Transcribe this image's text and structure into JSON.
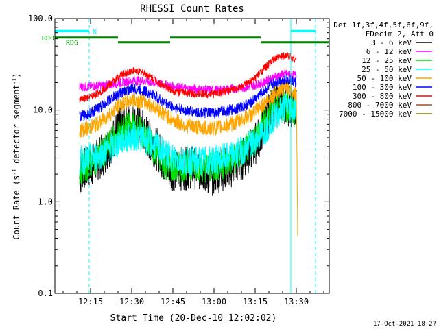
{
  "chart_data": {
    "type": "line",
    "title": "RHESSI Count Rates",
    "xlabel": "Start Time (20-Dec-10 12:02:02)",
    "ylabel_parts": [
      "Count Rate (s",
      "-1",
      " detector segment",
      "-1",
      ")"
    ],
    "x_unit": "minutes after 12:02:02",
    "x_range": [
      0,
      100
    ],
    "y_scale": "log",
    "ylim": [
      0.1,
      100.0
    ],
    "x_ticks": [
      {
        "t": 13,
        "label": "12:15"
      },
      {
        "t": 28,
        "label": "12:30"
      },
      {
        "t": 43,
        "label": "12:45"
      },
      {
        "t": 58,
        "label": "13:00"
      },
      {
        "t": 73,
        "label": "13:15"
      },
      {
        "t": 88,
        "label": "13:30"
      }
    ],
    "y_ticks": [
      {
        "v": 0.1,
        "label": "0.1"
      },
      {
        "v": 1.0,
        "label": "1.0"
      },
      {
        "v": 10.0,
        "label": "10.0"
      },
      {
        "v": 100.0,
        "label": "100.0"
      }
    ],
    "legend_header": [
      "Det 1f,3f,4f,5f,6f,9f,",
      "FDecim 2, Att 0"
    ],
    "legend_placement": "right, outside plot",
    "series": [
      {
        "name": "3 - 6 keV",
        "color": "#000000",
        "t": [
          9,
          10,
          12,
          14,
          16,
          18,
          20,
          22,
          24,
          26,
          28,
          30,
          32,
          34,
          36,
          38,
          40,
          42,
          44,
          46,
          48,
          50,
          52,
          54,
          56,
          58,
          60,
          62,
          64,
          66,
          68,
          70,
          72,
          74,
          76,
          78,
          80,
          82,
          84,
          86,
          88
        ],
        "v": [
          1.8,
          2.3,
          2.3,
          2.6,
          3.0,
          3.3,
          4.2,
          5.5,
          6.4,
          7.0,
          7.2,
          6.8,
          6.0,
          5.0,
          4.2,
          3.4,
          2.7,
          2.3,
          2.2,
          2.3,
          2.3,
          2.4,
          2.3,
          2.2,
          2.0,
          2.0,
          2.2,
          2.3,
          2.4,
          2.6,
          2.9,
          3.3,
          3.8,
          4.8,
          6.5,
          9.0,
          11.5,
          12.5,
          12.0,
          11.0,
          10.5
        ]
      },
      {
        "name": "6 - 12 keV",
        "color": "#ff00ff",
        "t": [
          9,
          12,
          16,
          20,
          24,
          28,
          32,
          36,
          40,
          44,
          48,
          52,
          56,
          60,
          64,
          68,
          72,
          76,
          80,
          84,
          86,
          88
        ],
        "v": [
          18,
          18,
          18.5,
          19,
          20,
          21,
          21,
          20,
          19,
          18,
          17,
          17,
          16.5,
          16.5,
          17,
          17.5,
          18.5,
          20,
          23,
          25,
          24,
          24
        ]
      },
      {
        "name": "12 - 25 keV",
        "color": "#00dd00",
        "t": [
          9,
          10,
          12,
          14,
          16,
          18,
          20,
          22,
          24,
          26,
          28,
          30,
          32,
          34,
          36,
          38,
          40,
          42,
          44,
          46,
          48,
          50,
          52,
          54,
          56,
          58,
          60,
          62,
          64,
          66,
          68,
          70,
          72,
          74,
          76,
          78,
          80,
          82,
          84,
          86,
          88
        ],
        "v": [
          2.2,
          2.4,
          2.5,
          2.8,
          3.1,
          3.5,
          4.2,
          5.0,
          5.8,
          6.3,
          6.5,
          6.2,
          5.5,
          4.6,
          3.8,
          3.1,
          2.6,
          2.4,
          2.3,
          2.4,
          2.5,
          2.5,
          2.5,
          2.4,
          2.4,
          2.4,
          2.5,
          2.6,
          2.8,
          3.0,
          3.3,
          3.8,
          4.5,
          5.5,
          7.0,
          9.0,
          11.0,
          11.5,
          11.0,
          10.0,
          9.5
        ]
      },
      {
        "name": "25 - 50 keV",
        "color": "#00ffff",
        "t": [
          9,
          12,
          16,
          20,
          24,
          28,
          32,
          36,
          40,
          44,
          48,
          52,
          56,
          60,
          64,
          68,
          72,
          76,
          80,
          84,
          86,
          88
        ],
        "v": [
          2.8,
          2.9,
          3.2,
          3.8,
          4.6,
          5.2,
          5.0,
          4.2,
          3.4,
          2.9,
          2.8,
          2.8,
          2.8,
          2.9,
          3.1,
          3.6,
          4.3,
          5.8,
          8.5,
          11.0,
          11.0,
          10.5
        ]
      },
      {
        "name": "50 - 100 keV",
        "color": "#ffa500",
        "t": [
          9,
          12,
          16,
          20,
          24,
          28,
          32,
          36,
          40,
          44,
          48,
          52,
          56,
          60,
          64,
          68,
          72,
          76,
          80,
          84,
          86,
          88,
          88.5
        ],
        "v": [
          6.0,
          6.3,
          7.2,
          9.0,
          11.5,
          13.0,
          12.5,
          11.0,
          9.0,
          7.5,
          6.8,
          6.5,
          6.3,
          6.5,
          7.0,
          7.8,
          9.0,
          11.5,
          15.0,
          18.0,
          17.0,
          15.0,
          0.5
        ]
      },
      {
        "name": "100 - 300 keV",
        "color": "#0000ff",
        "t": [
          9,
          12,
          16,
          20,
          24,
          28,
          32,
          36,
          40,
          44,
          48,
          52,
          56,
          60,
          64,
          68,
          72,
          76,
          80,
          84,
          86,
          88
        ],
        "v": [
          8.5,
          9.0,
          10.5,
          13.0,
          15.5,
          17.0,
          16.5,
          14.5,
          12.0,
          10.5,
          9.8,
          9.5,
          9.3,
          9.5,
          10.0,
          10.8,
          12.5,
          16.0,
          20.0,
          22.0,
          21.0,
          20.0
        ]
      },
      {
        "name": "300 - 800 keV",
        "color": "#ff0000",
        "t": [
          9,
          12,
          16,
          20,
          24,
          28,
          32,
          36,
          40,
          44,
          48,
          52,
          56,
          60,
          64,
          68,
          72,
          76,
          80,
          84,
          86,
          88
        ],
        "v": [
          13.0,
          13.5,
          15.5,
          19.0,
          24.0,
          27.0,
          26.0,
          22.0,
          18.0,
          16.0,
          15.5,
          15.0,
          15.0,
          15.5,
          16.5,
          18.0,
          21.0,
          28.0,
          36.0,
          40.0,
          38.0,
          36.0
        ]
      },
      {
        "name": "800 - 7000 keV",
        "color": "#a0522d",
        "t": [],
        "v": []
      },
      {
        "name": "7000 - 15000 keV",
        "color": "#808000",
        "t": [],
        "v": []
      }
    ],
    "attenuator_bars": [
      {
        "label": "RD0",
        "y_level": 62.0,
        "segments": [
          [
            0,
            23
          ],
          [
            42,
            75
          ]
        ]
      },
      {
        "label": "RD6",
        "y_level": 55.0,
        "segments": [
          [
            23,
            42
          ],
          [
            75,
            100
          ]
        ]
      }
    ],
    "n_marker": {
      "label": "N",
      "y_level": 73.0,
      "segments": [
        [
          0,
          12.5
        ],
        [
          86,
          95
        ]
      ]
    },
    "vertical_lines": [
      12.5,
      86,
      95
    ],
    "colors": {
      "axes": "#000000",
      "cyan": "#00ffff",
      "green_bar": "#008000"
    }
  },
  "footer_timestamp": "17-Oct-2021 18:27"
}
